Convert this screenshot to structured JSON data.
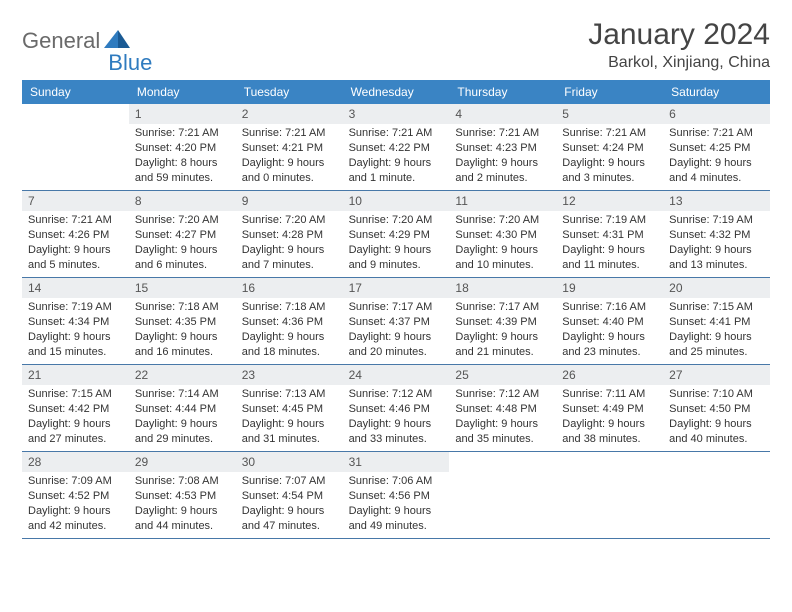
{
  "brand": {
    "part1": "General",
    "part2": "Blue"
  },
  "title": "January 2024",
  "location": "Barkol, Xinjiang, China",
  "colors": {
    "header_bg": "#3a84c4",
    "header_text": "#ffffff",
    "daynum_bg": "#eceef0",
    "week_border": "#4878a8",
    "brand_gray": "#6a6a6a",
    "brand_blue": "#2f7bbf"
  },
  "dayNames": [
    "Sunday",
    "Monday",
    "Tuesday",
    "Wednesday",
    "Thursday",
    "Friday",
    "Saturday"
  ],
  "weeks": [
    [
      null,
      {
        "n": "1",
        "sr": "Sunrise: 7:21 AM",
        "ss": "Sunset: 4:20 PM",
        "d1": "Daylight: 8 hours",
        "d2": "and 59 minutes."
      },
      {
        "n": "2",
        "sr": "Sunrise: 7:21 AM",
        "ss": "Sunset: 4:21 PM",
        "d1": "Daylight: 9 hours",
        "d2": "and 0 minutes."
      },
      {
        "n": "3",
        "sr": "Sunrise: 7:21 AM",
        "ss": "Sunset: 4:22 PM",
        "d1": "Daylight: 9 hours",
        "d2": "and 1 minute."
      },
      {
        "n": "4",
        "sr": "Sunrise: 7:21 AM",
        "ss": "Sunset: 4:23 PM",
        "d1": "Daylight: 9 hours",
        "d2": "and 2 minutes."
      },
      {
        "n": "5",
        "sr": "Sunrise: 7:21 AM",
        "ss": "Sunset: 4:24 PM",
        "d1": "Daylight: 9 hours",
        "d2": "and 3 minutes."
      },
      {
        "n": "6",
        "sr": "Sunrise: 7:21 AM",
        "ss": "Sunset: 4:25 PM",
        "d1": "Daylight: 9 hours",
        "d2": "and 4 minutes."
      }
    ],
    [
      {
        "n": "7",
        "sr": "Sunrise: 7:21 AM",
        "ss": "Sunset: 4:26 PM",
        "d1": "Daylight: 9 hours",
        "d2": "and 5 minutes."
      },
      {
        "n": "8",
        "sr": "Sunrise: 7:20 AM",
        "ss": "Sunset: 4:27 PM",
        "d1": "Daylight: 9 hours",
        "d2": "and 6 minutes."
      },
      {
        "n": "9",
        "sr": "Sunrise: 7:20 AM",
        "ss": "Sunset: 4:28 PM",
        "d1": "Daylight: 9 hours",
        "d2": "and 7 minutes."
      },
      {
        "n": "10",
        "sr": "Sunrise: 7:20 AM",
        "ss": "Sunset: 4:29 PM",
        "d1": "Daylight: 9 hours",
        "d2": "and 9 minutes."
      },
      {
        "n": "11",
        "sr": "Sunrise: 7:20 AM",
        "ss": "Sunset: 4:30 PM",
        "d1": "Daylight: 9 hours",
        "d2": "and 10 minutes."
      },
      {
        "n": "12",
        "sr": "Sunrise: 7:19 AM",
        "ss": "Sunset: 4:31 PM",
        "d1": "Daylight: 9 hours",
        "d2": "and 11 minutes."
      },
      {
        "n": "13",
        "sr": "Sunrise: 7:19 AM",
        "ss": "Sunset: 4:32 PM",
        "d1": "Daylight: 9 hours",
        "d2": "and 13 minutes."
      }
    ],
    [
      {
        "n": "14",
        "sr": "Sunrise: 7:19 AM",
        "ss": "Sunset: 4:34 PM",
        "d1": "Daylight: 9 hours",
        "d2": "and 15 minutes."
      },
      {
        "n": "15",
        "sr": "Sunrise: 7:18 AM",
        "ss": "Sunset: 4:35 PM",
        "d1": "Daylight: 9 hours",
        "d2": "and 16 minutes."
      },
      {
        "n": "16",
        "sr": "Sunrise: 7:18 AM",
        "ss": "Sunset: 4:36 PM",
        "d1": "Daylight: 9 hours",
        "d2": "and 18 minutes."
      },
      {
        "n": "17",
        "sr": "Sunrise: 7:17 AM",
        "ss": "Sunset: 4:37 PM",
        "d1": "Daylight: 9 hours",
        "d2": "and 20 minutes."
      },
      {
        "n": "18",
        "sr": "Sunrise: 7:17 AM",
        "ss": "Sunset: 4:39 PM",
        "d1": "Daylight: 9 hours",
        "d2": "and 21 minutes."
      },
      {
        "n": "19",
        "sr": "Sunrise: 7:16 AM",
        "ss": "Sunset: 4:40 PM",
        "d1": "Daylight: 9 hours",
        "d2": "and 23 minutes."
      },
      {
        "n": "20",
        "sr": "Sunrise: 7:15 AM",
        "ss": "Sunset: 4:41 PM",
        "d1": "Daylight: 9 hours",
        "d2": "and 25 minutes."
      }
    ],
    [
      {
        "n": "21",
        "sr": "Sunrise: 7:15 AM",
        "ss": "Sunset: 4:42 PM",
        "d1": "Daylight: 9 hours",
        "d2": "and 27 minutes."
      },
      {
        "n": "22",
        "sr": "Sunrise: 7:14 AM",
        "ss": "Sunset: 4:44 PM",
        "d1": "Daylight: 9 hours",
        "d2": "and 29 minutes."
      },
      {
        "n": "23",
        "sr": "Sunrise: 7:13 AM",
        "ss": "Sunset: 4:45 PM",
        "d1": "Daylight: 9 hours",
        "d2": "and 31 minutes."
      },
      {
        "n": "24",
        "sr": "Sunrise: 7:12 AM",
        "ss": "Sunset: 4:46 PM",
        "d1": "Daylight: 9 hours",
        "d2": "and 33 minutes."
      },
      {
        "n": "25",
        "sr": "Sunrise: 7:12 AM",
        "ss": "Sunset: 4:48 PM",
        "d1": "Daylight: 9 hours",
        "d2": "and 35 minutes."
      },
      {
        "n": "26",
        "sr": "Sunrise: 7:11 AM",
        "ss": "Sunset: 4:49 PM",
        "d1": "Daylight: 9 hours",
        "d2": "and 38 minutes."
      },
      {
        "n": "27",
        "sr": "Sunrise: 7:10 AM",
        "ss": "Sunset: 4:50 PM",
        "d1": "Daylight: 9 hours",
        "d2": "and 40 minutes."
      }
    ],
    [
      {
        "n": "28",
        "sr": "Sunrise: 7:09 AM",
        "ss": "Sunset: 4:52 PM",
        "d1": "Daylight: 9 hours",
        "d2": "and 42 minutes."
      },
      {
        "n": "29",
        "sr": "Sunrise: 7:08 AM",
        "ss": "Sunset: 4:53 PM",
        "d1": "Daylight: 9 hours",
        "d2": "and 44 minutes."
      },
      {
        "n": "30",
        "sr": "Sunrise: 7:07 AM",
        "ss": "Sunset: 4:54 PM",
        "d1": "Daylight: 9 hours",
        "d2": "and 47 minutes."
      },
      {
        "n": "31",
        "sr": "Sunrise: 7:06 AM",
        "ss": "Sunset: 4:56 PM",
        "d1": "Daylight: 9 hours",
        "d2": "and 49 minutes."
      },
      null,
      null,
      null
    ]
  ]
}
